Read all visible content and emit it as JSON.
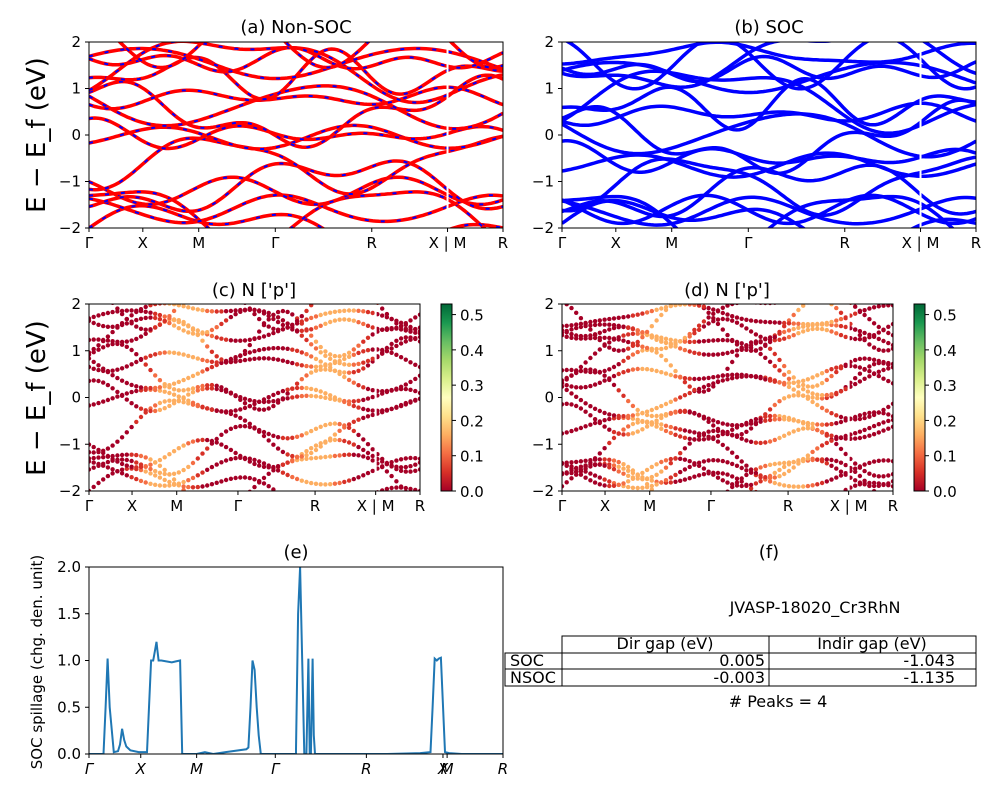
{
  "chart_data": [
    {
      "panel": "a",
      "type": "line",
      "title": "(a) Non-SOC",
      "ylabel": "E − E_f (eV)",
      "ylim": [
        -2,
        2
      ],
      "yticks": [
        "−2",
        "−1",
        "0",
        "1",
        "2"
      ],
      "kpath_labels": [
        "Γ",
        "X",
        "M",
        "Γ",
        "R",
        "X | M",
        "R"
      ],
      "series": [
        {
          "style": "red solid with blue dashes",
          "color": "#ff0000",
          "dash_color": "#0000ff",
          "approx_band_anchor_energies": [
            -2.0,
            -1.7,
            -1.6,
            -1.2,
            -1.1,
            -0.6,
            -0.05,
            0.0,
            0.5,
            0.65,
            0.8,
            1.3,
            1.45,
            1.55,
            1.6,
            2.0
          ]
        }
      ]
    },
    {
      "panel": "b",
      "type": "line",
      "title": "(b) SOC",
      "ylim": [
        -2,
        2
      ],
      "yticks": [
        "−2",
        "−1",
        "0",
        "1",
        "2"
      ],
      "kpath_labels": [
        "Γ",
        "X",
        "M",
        "Γ",
        "R",
        "X | M",
        "R"
      ],
      "series": [
        {
          "color": "#0000ff",
          "approx_band_anchor_energies": [
            -1.9,
            -1.8,
            -1.65,
            -1.6,
            -1.2,
            -1.05,
            -0.65,
            -0.5,
            -0.05,
            0.05,
            0.45,
            0.65,
            0.8,
            1.25,
            1.4,
            1.55,
            1.65,
            1.75
          ]
        }
      ]
    },
    {
      "panel": "c",
      "type": "scatter",
      "title": "(c)  N ['p']",
      "ylabel": "E − E_f (eV)",
      "ylim": [
        -2,
        2
      ],
      "yticks": [
        "−2",
        "−1",
        "0",
        "1",
        "2"
      ],
      "kpath_labels": [
        "Γ",
        "X",
        "M",
        "Γ",
        "R",
        "X | M",
        "R"
      ],
      "colorbar": {
        "range": [
          0.0,
          0.5
        ],
        "ticks": [
          "0.0",
          "0.1",
          "0.2",
          "0.3",
          "0.4",
          "0.5"
        ],
        "colormap": "RdYlGn"
      }
    },
    {
      "panel": "d",
      "type": "scatter",
      "title": "(d) N ['p']",
      "ylim": [
        -2,
        2
      ],
      "yticks": [
        "−2",
        "−1",
        "0",
        "1",
        "2"
      ],
      "kpath_labels": [
        "Γ",
        "X",
        "M",
        "Γ",
        "R",
        "X | M",
        "R"
      ],
      "colorbar": {
        "range": [
          0.0,
          0.5
        ],
        "ticks": [
          "0.0",
          "0.1",
          "0.2",
          "0.3",
          "0.4",
          "0.5"
        ],
        "colormap": "RdYlGn"
      }
    },
    {
      "panel": "e",
      "type": "line",
      "title": "(e)",
      "ylabel": "SOC spillage (chg. den. unit)",
      "ylim": [
        0,
        2
      ],
      "yticks": [
        "0.0",
        "0.5",
        "1.0",
        "1.5",
        "2.0"
      ],
      "xlabels": [
        "Γ",
        "X",
        "M",
        "Γ",
        "R",
        "X",
        "M",
        "R"
      ],
      "series": [
        {
          "color": "#1f77b4",
          "x": [
            0,
            0.035,
            0.04,
            0.045,
            0.05,
            0.06,
            0.07,
            0.075,
            0.08,
            0.085,
            0.09,
            0.1,
            0.12,
            0.14,
            0.145,
            0.15,
            0.155,
            0.16,
            0.163,
            0.165,
            0.168,
            0.175,
            0.2,
            0.21,
            0.22,
            0.225,
            0.26,
            0.28,
            0.3,
            0.33,
            0.38,
            0.385,
            0.39,
            0.395,
            0.4,
            0.405,
            0.41,
            0.415,
            0.5,
            0.5,
            0.505,
            0.51,
            0.515,
            0.52,
            0.525,
            0.53,
            0.533,
            0.536,
            0.54,
            0.543,
            0.546,
            0.55,
            0.56,
            0.64,
            0.72,
            0.8,
            0.825,
            0.83,
            0.835,
            0.84,
            0.845,
            0.85,
            0.86,
            0.87,
            0.9,
            1.0
          ],
          "y": [
            0,
            0,
            0.5,
            1.02,
            0.5,
            0.02,
            0.03,
            0.1,
            0.27,
            0.15,
            0.08,
            0.04,
            0.02,
            0.02,
            0.5,
            1.0,
            1.0,
            1.12,
            1.2,
            1.12,
            1.0,
            1.0,
            0.98,
            0.99,
            1.0,
            0.0,
            0.0,
            0.02,
            0.0,
            0.02,
            0.05,
            0.07,
            0.5,
            1.0,
            0.9,
            0.5,
            0.2,
            0.0,
            0.0,
            0.05,
            1.5,
            2.0,
            1.0,
            0.0,
            0.0,
            1.02,
            0.0,
            0.0,
            1.02,
            0.2,
            0.0,
            0.0,
            0.0,
            0.0,
            0.0,
            0.01,
            0.02,
            0.5,
            1.02,
            1.0,
            1.02,
            1.03,
            0.02,
            0.01,
            0.0,
            0.0
          ]
        }
      ]
    }
  ],
  "panel_f": {
    "title": "(f)",
    "material": "JVASP-18020_Cr3RhN",
    "columns": [
      "",
      "Dir gap (eV)",
      "Indir gap (eV)"
    ],
    "rows": [
      {
        "label": "SOC",
        "dir": "0.005",
        "indir": "-1.043"
      },
      {
        "label": "NSOC",
        "dir": "-0.003",
        "indir": "-1.135"
      }
    ],
    "peaks": "# Peaks = 4"
  }
}
